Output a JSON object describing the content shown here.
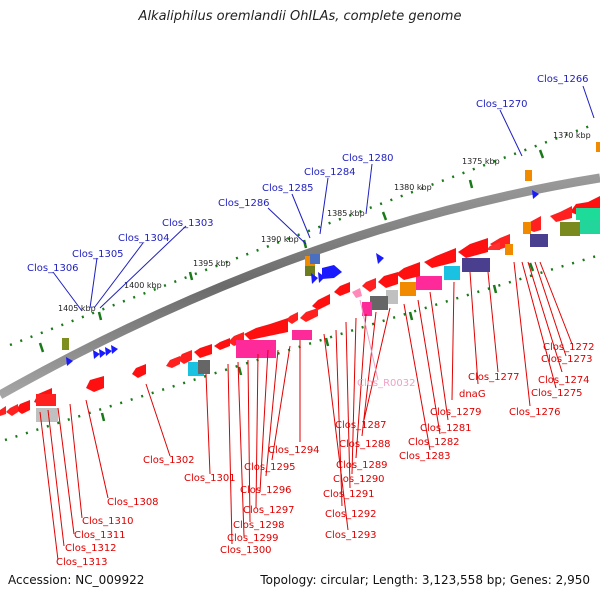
{
  "title": "Alkaliphilus oremlandii OhILAs, complete genome",
  "accession": "Accession: NC_009922",
  "topology": "Topology: circular; Length: 3,123,558 bp; Genes: 2,950",
  "scale_labels": [
    "1370 kbp",
    "1375 kbp",
    "1380 kbp",
    "1385 kbp",
    "1390 kbp",
    "1395 kbp",
    "1400 kbp",
    "1405 kbp"
  ],
  "upper_gene_labels": [
    "Clos_1266",
    "Clos_1270",
    "Clos_1280",
    "Clos_1284",
    "Clos_1285",
    "Clos_1286",
    "Clos_1303",
    "Clos_1304",
    "Clos_1305",
    "Clos_1306"
  ],
  "rna_label": "Clos_R0032",
  "lower_gene_labels": [
    "Clos_1272",
    "Clos_1273",
    "Clos_1274",
    "Clos_1275",
    "Clos_1276",
    "Clos_1277",
    "dnaG",
    "Clos_1279",
    "Clos_1281",
    "Clos_1282",
    "Clos_1283",
    "Clos_1287",
    "Clos_1288",
    "Clos_1289",
    "Clos_1290",
    "Clos_1291",
    "Clos_1292",
    "Clos_1293",
    "Clos_1294",
    "Clos_1295",
    "Clos_1296",
    "Clos_1297",
    "Clos_1298",
    "Clos_1299",
    "Clos_1300",
    "Clos_1301",
    "Clos_1302",
    "Clos_1308",
    "Clos_1310",
    "Clos_1311",
    "Clos_1312",
    "Clos_1313"
  ],
  "colors": {
    "forward_label": "#1f1fbf",
    "reverse_label": "#cc0000",
    "rna_label": "#f0a0c8",
    "backbone": "#7f7f7f",
    "forward_gene": "#1a1aff",
    "reverse_gene": "#ff0000",
    "tick": "#1a7a1a"
  }
}
